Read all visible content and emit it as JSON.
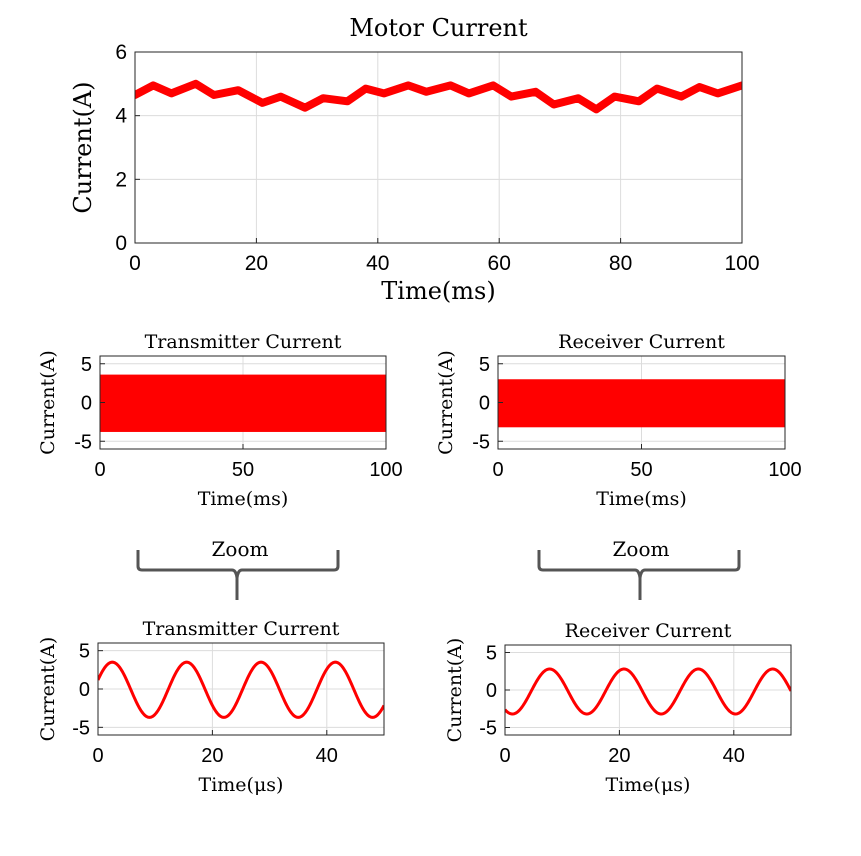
{
  "figure": {
    "zoom_labels": [
      "Zoom",
      "Zoom"
    ],
    "colors": {
      "trace": "#ff0000",
      "grid": "#dcdcdc",
      "axis": "#262626",
      "brace": "#555555"
    }
  },
  "chart_data": [
    {
      "type": "line",
      "title": "Motor Current",
      "xlabel": "Time(ms)",
      "ylabel": "Current(A)",
      "xlim": [
        0,
        100
      ],
      "ylim": [
        0,
        6
      ],
      "xticks": [
        "0",
        "20",
        "40",
        "60",
        "80",
        "100"
      ],
      "yticks": [
        "0",
        "2",
        "4",
        "6"
      ],
      "grid": true,
      "series": [
        {
          "x": [
            0,
            3,
            6,
            10,
            13,
            17,
            21,
            24,
            28,
            31,
            35,
            38,
            41,
            45,
            48,
            52,
            55,
            59,
            62,
            66,
            69,
            73,
            76,
            79,
            83,
            86,
            90,
            93,
            96,
            100
          ],
          "values": [
            4.65,
            4.95,
            4.7,
            5.0,
            4.65,
            4.8,
            4.4,
            4.6,
            4.25,
            4.55,
            4.45,
            4.85,
            4.7,
            4.95,
            4.75,
            4.95,
            4.7,
            4.95,
            4.6,
            4.75,
            4.35,
            4.55,
            4.2,
            4.6,
            4.45,
            4.85,
            4.6,
            4.9,
            4.7,
            4.95
          ]
        }
      ]
    },
    {
      "type": "line",
      "title": "Transmitter Current",
      "xlabel": "Time(ms)",
      "ylabel": "Current(A)",
      "xlim": [
        0,
        100
      ],
      "ylim": [
        -6,
        6
      ],
      "xticks": [
        "0",
        "50",
        "100"
      ],
      "yticks": [
        "-5",
        "0",
        "5"
      ],
      "grid": true,
      "series": [
        {
          "x": [
            0,
            100
          ],
          "envelope_min": -3.8,
          "envelope_max": 3.6
        }
      ]
    },
    {
      "type": "line",
      "title": "Receiver Current",
      "xlabel": "Time(ms)",
      "ylabel": "Current(A)",
      "xlim": [
        0,
        100
      ],
      "ylim": [
        -6,
        6
      ],
      "xticks": [
        "0",
        "50",
        "100"
      ],
      "yticks": [
        "-5",
        "0",
        "5"
      ],
      "grid": true,
      "series": [
        {
          "x": [
            0,
            100
          ],
          "envelope_min": -3.2,
          "envelope_max": 3.0
        }
      ]
    },
    {
      "type": "line",
      "title": "Transmitter Current",
      "xlabel": "Time(μs)",
      "ylabel": "Current(A)",
      "xlim": [
        0,
        50
      ],
      "ylim": [
        -6,
        6
      ],
      "xticks": [
        "0",
        "20",
        "40"
      ],
      "yticks": [
        "-5",
        "0",
        "5"
      ],
      "grid": true,
      "series": [
        {
          "amplitude": 3.6,
          "period_us": 13.0,
          "peak_time_us": 2.5,
          "offset": -0.1
        }
      ]
    },
    {
      "type": "line",
      "title": "Receiver Current",
      "xlabel": "Time(μs)",
      "ylabel": "Current(A)",
      "xlim": [
        0,
        50
      ],
      "ylim": [
        -6,
        6
      ],
      "xticks": [
        "0",
        "20",
        "40"
      ],
      "yticks": [
        "-5",
        "0",
        "5"
      ],
      "grid": true,
      "series": [
        {
          "amplitude": 3.0,
          "period_us": 13.0,
          "peak_time_us": 7.8,
          "offset": -0.2
        }
      ]
    }
  ]
}
